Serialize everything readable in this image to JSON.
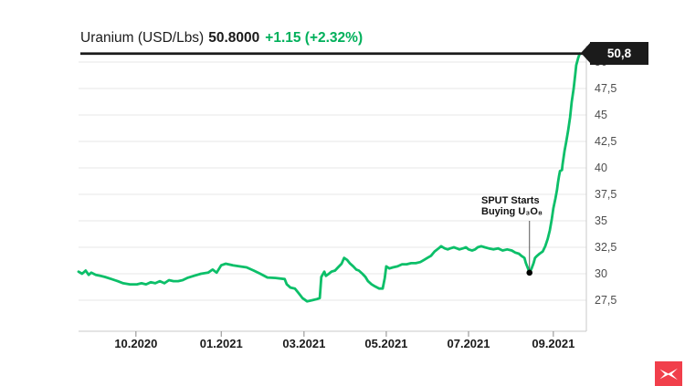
{
  "title": {
    "instrument": "Uranium (USD/Lbs)",
    "price": "50.8000",
    "change": "+1.15 (+2.32%)"
  },
  "price_tag": {
    "label": "50,8"
  },
  "annotation": {
    "line1": "SPUT Starts",
    "line2": "Buying U₃O₈"
  },
  "colors": {
    "line_green": "#0cbf69",
    "text_green": "#00b05b",
    "ink": "#1b1b1b",
    "grid": "#e7e7e7",
    "axis": "#c9c9c9",
    "tick": "#8a8a8a",
    "y_label": "#4d4d4d",
    "x_label": "#1a1a1a",
    "annotation_line": "#555555",
    "logo_red": "#f13f4b"
  },
  "chart_data": {
    "type": "line",
    "title": "Uranium (USD/Lbs)",
    "xlabel": "",
    "ylabel": "",
    "grid": "horizontal",
    "legend_position": "none",
    "y_axis_side": "right",
    "ylim": [
      24.5,
      51.5
    ],
    "y_ticks": [
      50,
      47.5,
      45,
      42.5,
      40,
      37.5,
      35,
      32.5,
      30,
      27.5
    ],
    "y_tick_labels": [
      "50",
      "47,5",
      "45",
      "42,5",
      "40",
      "37,5",
      "35",
      "32,5",
      "30",
      "27,5"
    ],
    "x_tick_labels": [
      "10.2020",
      "01.2021",
      "03.2021",
      "05.2021",
      "07.2021",
      "09.2021"
    ],
    "x_tick_positions": [
      0.113,
      0.281,
      0.444,
      0.606,
      0.768,
      0.935
    ],
    "last_price": 50.8,
    "annotation_point": {
      "x": 0.888,
      "value": 30.1
    },
    "series": [
      {
        "name": "Uranium spot price (USD/Lbs)",
        "points": [
          [
            0.0,
            30.2
          ],
          [
            0.007,
            30.0
          ],
          [
            0.014,
            30.3
          ],
          [
            0.02,
            29.9
          ],
          [
            0.025,
            30.1
          ],
          [
            0.034,
            29.9
          ],
          [
            0.043,
            29.8
          ],
          [
            0.052,
            29.7
          ],
          [
            0.065,
            29.5
          ],
          [
            0.077,
            29.3
          ],
          [
            0.088,
            29.1
          ],
          [
            0.101,
            29.0
          ],
          [
            0.115,
            29.0
          ],
          [
            0.124,
            29.1
          ],
          [
            0.133,
            29.0
          ],
          [
            0.142,
            29.2
          ],
          [
            0.151,
            29.1
          ],
          [
            0.16,
            29.3
          ],
          [
            0.169,
            29.1
          ],
          [
            0.178,
            29.4
          ],
          [
            0.187,
            29.3
          ],
          [
            0.196,
            29.3
          ],
          [
            0.205,
            29.4
          ],
          [
            0.214,
            29.6
          ],
          [
            0.227,
            29.8
          ],
          [
            0.241,
            30.0
          ],
          [
            0.255,
            30.1
          ],
          [
            0.264,
            30.4
          ],
          [
            0.272,
            30.1
          ],
          [
            0.281,
            30.8
          ],
          [
            0.29,
            30.95
          ],
          [
            0.304,
            30.8
          ],
          [
            0.317,
            30.7
          ],
          [
            0.331,
            30.6
          ],
          [
            0.345,
            30.3
          ],
          [
            0.358,
            30.0
          ],
          [
            0.372,
            29.65
          ],
          [
            0.388,
            29.6
          ],
          [
            0.406,
            29.5
          ],
          [
            0.41,
            29.0
          ],
          [
            0.417,
            28.7
          ],
          [
            0.426,
            28.6
          ],
          [
            0.433,
            28.2
          ],
          [
            0.441,
            27.7
          ],
          [
            0.45,
            27.4
          ],
          [
            0.46,
            27.5
          ],
          [
            0.469,
            27.6
          ],
          [
            0.475,
            27.7
          ],
          [
            0.478,
            29.7
          ],
          [
            0.484,
            30.2
          ],
          [
            0.487,
            29.8
          ],
          [
            0.493,
            30.0
          ],
          [
            0.498,
            30.2
          ],
          [
            0.505,
            30.3
          ],
          [
            0.511,
            30.6
          ],
          [
            0.518,
            30.95
          ],
          [
            0.523,
            31.5
          ],
          [
            0.529,
            31.3
          ],
          [
            0.534,
            31.0
          ],
          [
            0.541,
            30.7
          ],
          [
            0.547,
            30.4
          ],
          [
            0.552,
            30.3
          ],
          [
            0.559,
            30.0
          ],
          [
            0.565,
            29.7
          ],
          [
            0.57,
            29.3
          ],
          [
            0.577,
            29.0
          ],
          [
            0.584,
            28.8
          ],
          [
            0.592,
            28.6
          ],
          [
            0.599,
            28.6
          ],
          [
            0.603,
            29.6
          ],
          [
            0.606,
            30.7
          ],
          [
            0.612,
            30.5
          ],
          [
            0.619,
            30.6
          ],
          [
            0.628,
            30.7
          ],
          [
            0.637,
            30.9
          ],
          [
            0.646,
            30.9
          ],
          [
            0.655,
            31.0
          ],
          [
            0.664,
            31.0
          ],
          [
            0.673,
            31.1
          ],
          [
            0.68,
            31.3
          ],
          [
            0.687,
            31.5
          ],
          [
            0.694,
            31.7
          ],
          [
            0.701,
            32.1
          ],
          [
            0.709,
            32.4
          ],
          [
            0.714,
            32.6
          ],
          [
            0.721,
            32.4
          ],
          [
            0.727,
            32.3
          ],
          [
            0.732,
            32.4
          ],
          [
            0.739,
            32.5
          ],
          [
            0.745,
            32.4
          ],
          [
            0.75,
            32.3
          ],
          [
            0.757,
            32.4
          ],
          [
            0.763,
            32.5
          ],
          [
            0.768,
            32.3
          ],
          [
            0.775,
            32.2
          ],
          [
            0.781,
            32.3
          ],
          [
            0.786,
            32.5
          ],
          [
            0.793,
            32.6
          ],
          [
            0.8,
            32.5
          ],
          [
            0.808,
            32.4
          ],
          [
            0.817,
            32.3
          ],
          [
            0.826,
            32.4
          ],
          [
            0.835,
            32.2
          ],
          [
            0.844,
            32.3
          ],
          [
            0.853,
            32.2
          ],
          [
            0.86,
            32.0
          ],
          [
            0.867,
            31.9
          ],
          [
            0.872,
            31.7
          ],
          [
            0.878,
            31.5
          ],
          [
            0.881,
            31.0
          ],
          [
            0.885,
            30.5
          ],
          [
            0.888,
            30.1
          ],
          [
            0.892,
            30.5
          ],
          [
            0.896,
            31.0
          ],
          [
            0.899,
            31.5
          ],
          [
            0.903,
            31.7
          ],
          [
            0.908,
            31.9
          ],
          [
            0.914,
            32.1
          ],
          [
            0.919,
            32.6
          ],
          [
            0.924,
            33.3
          ],
          [
            0.928,
            34.1
          ],
          [
            0.932,
            35.2
          ],
          [
            0.935,
            36.2
          ],
          [
            0.939,
            37.1
          ],
          [
            0.942,
            37.9
          ],
          [
            0.944,
            38.6
          ],
          [
            0.946,
            39.2
          ],
          [
            0.948,
            39.7
          ],
          [
            0.952,
            39.8
          ],
          [
            0.953,
            40.3
          ],
          [
            0.957,
            41.6
          ],
          [
            0.96,
            42.4
          ],
          [
            0.964,
            43.5
          ],
          [
            0.968,
            44.8
          ],
          [
            0.971,
            46.2
          ],
          [
            0.975,
            47.5
          ],
          [
            0.978,
            48.8
          ],
          [
            0.98,
            49.7
          ],
          [
            0.984,
            50.4
          ],
          [
            0.987,
            50.8
          ]
        ]
      }
    ]
  }
}
